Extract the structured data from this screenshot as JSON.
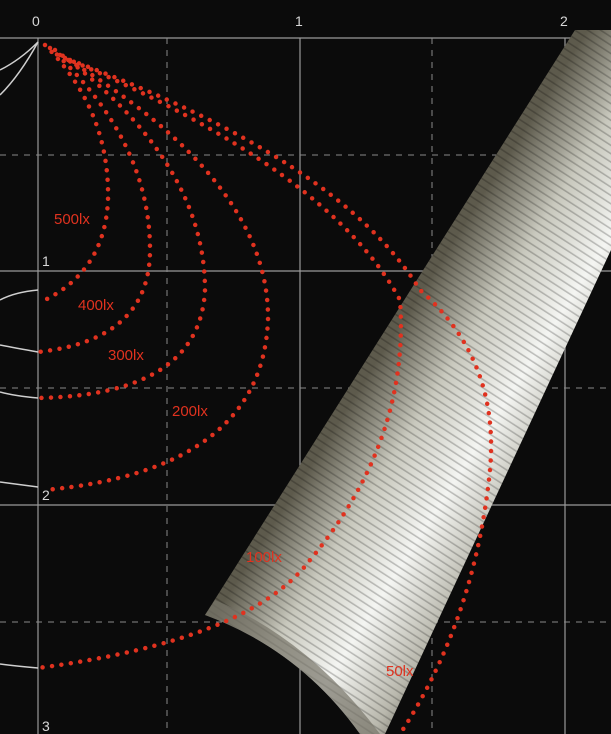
{
  "x_axis": {
    "labels": [
      "0",
      "1",
      "2"
    ]
  },
  "y_axis": {
    "labels": [
      "1",
      "2",
      "3"
    ]
  },
  "isolux_labels": [
    "500lx",
    "400lx",
    "300lx",
    "200lx",
    "100lx",
    "50lx"
  ]
}
